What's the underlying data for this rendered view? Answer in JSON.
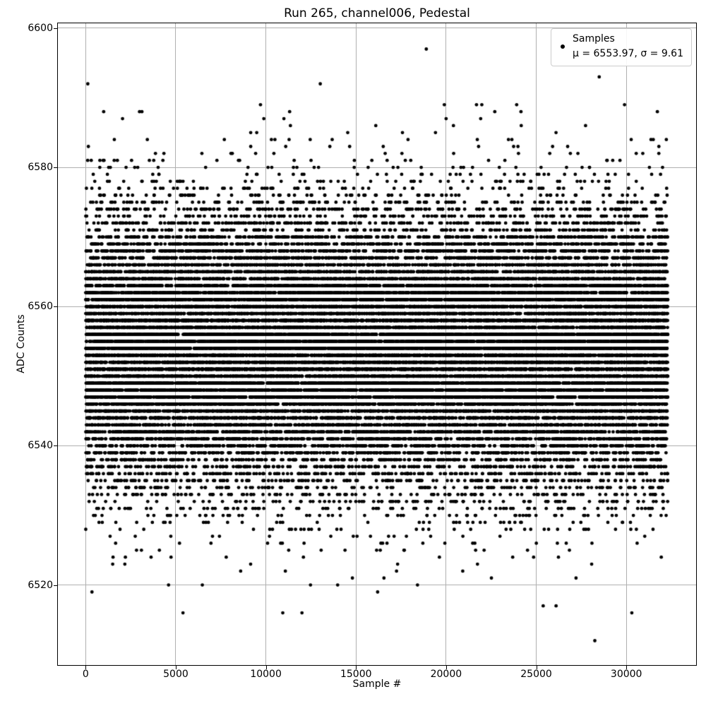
{
  "title": "Run 265, channel006, Pedestal",
  "xlabel": "Sample #",
  "ylabel": "ADC Counts",
  "legend": {
    "label": "Samples",
    "stats": "μ = 6553.97, σ = 9.61"
  },
  "colors": {
    "background": "#ffffff",
    "marker": "#000000",
    "grid": "#b0b0b0",
    "spine": "#000000",
    "legend_border": "#cccccc"
  },
  "chart_data": {
    "type": "scatter",
    "title": "Run 265, channel006, Pedestal",
    "xlabel": "Sample #",
    "ylabel": "ADC Counts",
    "xlim": [
      -1540,
      33870
    ],
    "ylim": [
      6508.5,
      6600.7
    ],
    "xticks": [
      0,
      5000,
      10000,
      15000,
      20000,
      25000,
      30000
    ],
    "yticks": [
      6520,
      6540,
      6560,
      6580,
      6600
    ],
    "grid": true,
    "legend_position": "upper right",
    "series": [
      {
        "name": "Samples",
        "marker": ".",
        "marker_color": "#000000",
        "marker_diameter_px": 4.8,
        "n_samples": 32300,
        "x_range": [
          0,
          32300
        ],
        "y_distribution": {
          "type": "gaussian_rounded_to_integer_adc",
          "mu": 6553.97,
          "sigma": 9.61
        },
        "notable_points": [
          [
            18900,
            6597
          ],
          [
            120,
            6592
          ],
          [
            1000,
            6588
          ],
          [
            9700,
            6589
          ],
          [
            29900,
            6589
          ],
          [
            11000,
            6587
          ],
          [
            20000,
            6587
          ],
          [
            22700,
            6588
          ],
          [
            350,
            6519
          ],
          [
            1500,
            6523
          ],
          [
            5400,
            6516
          ],
          [
            8600,
            6522
          ],
          [
            16200,
            6519
          ],
          [
            14800,
            6521
          ],
          [
            26100,
            6517
          ],
          [
            28250,
            6512
          ]
        ]
      }
    ],
    "stats": {
      "mu": 6553.97,
      "sigma": 9.61
    }
  }
}
